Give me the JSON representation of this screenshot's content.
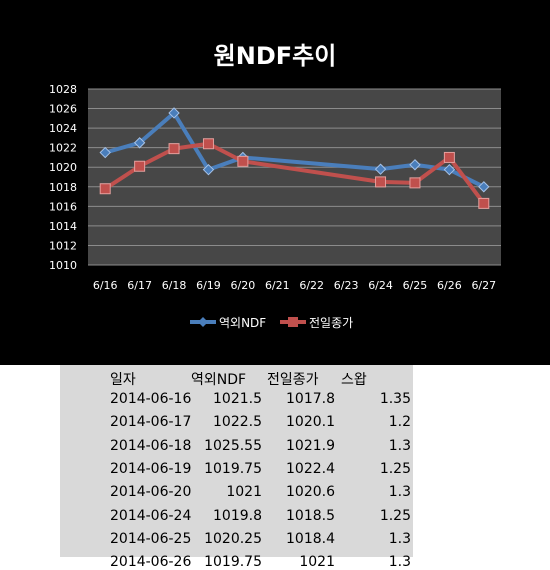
{
  "chart_data": {
    "type": "line",
    "title": "원NDF추이",
    "categories": [
      "6/16",
      "6/17",
      "6/18",
      "6/19",
      "6/20",
      "6/21",
      "6/22",
      "6/23",
      "6/24",
      "6/25",
      "6/26",
      "6/27"
    ],
    "ylim": [
      1010,
      1028
    ],
    "yticks": [
      1010,
      1012,
      1014,
      1016,
      1018,
      1020,
      1022,
      1024,
      1026,
      1028
    ],
    "grid": true,
    "legend_position": "bottom",
    "series": [
      {
        "name": "역외NDF",
        "color": "#4a7ebb",
        "marker": "diamond",
        "values": [
          1021.5,
          1022.5,
          1025.55,
          1019.75,
          1021,
          null,
          null,
          null,
          1019.8,
          1020.25,
          1019.75,
          1018
        ]
      },
      {
        "name": "전일종가",
        "color": "#c0504d",
        "marker": "square",
        "values": [
          1017.8,
          1020.1,
          1021.9,
          1022.4,
          1020.6,
          null,
          null,
          null,
          1018.5,
          1018.4,
          1021,
          1016.3
        ]
      }
    ]
  },
  "table": {
    "headers": [
      "일자",
      "역외NDF",
      "전일종가",
      "스왑"
    ],
    "rows": [
      [
        "2014-06-16",
        "1021.5",
        "1017.8",
        "1.35"
      ],
      [
        "2014-06-17",
        "1022.5",
        "1020.1",
        "1.2"
      ],
      [
        "2014-06-18",
        "1025.55",
        "1021.9",
        "1.3"
      ],
      [
        "2014-06-19",
        "1019.75",
        "1022.4",
        "1.25"
      ],
      [
        "2014-06-20",
        "1021",
        "1020.6",
        "1.3"
      ],
      [
        "2014-06-24",
        "1019.8",
        "1018.5",
        "1.25"
      ],
      [
        "2014-06-25",
        "1020.25",
        "1018.4",
        "1.3"
      ],
      [
        "2014-06-26",
        "1019.75",
        "1021",
        "1.3"
      ]
    ]
  }
}
